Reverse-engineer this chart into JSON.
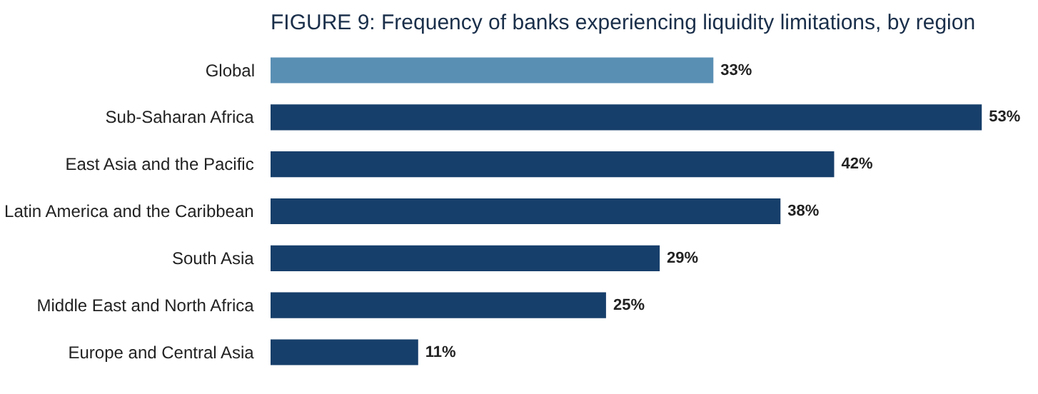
{
  "chart_data": {
    "type": "bar",
    "orientation": "horizontal",
    "title": "FIGURE 9: Frequency of banks experiencing liquidity limitations, by region",
    "categories": [
      "Global",
      "Sub-Saharan Africa",
      "East Asia and the Pacific",
      "Latin America and the Caribbean",
      "South Asia",
      "Middle East and North Africa",
      "Europe and Central Asia"
    ],
    "values": [
      33,
      53,
      42,
      38,
      29,
      25,
      11
    ],
    "colors": [
      "#5a8fb4",
      "#173f6b",
      "#173f6b",
      "#173f6b",
      "#173f6b",
      "#173f6b",
      "#173f6b"
    ],
    "value_labels": [
      "33%",
      "53%",
      "42%",
      "38%",
      "29%",
      "25%",
      "11%"
    ]
  }
}
